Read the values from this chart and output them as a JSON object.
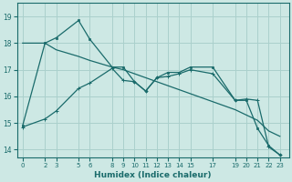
{
  "title": "",
  "xlabel": "Humidex (Indice chaleur)",
  "ylabel": "",
  "bg_color": "#cde8e4",
  "grid_color": "#aad0cc",
  "line_color": "#1a6b6b",
  "xlim": [
    -0.5,
    23.8
  ],
  "ylim": [
    13.7,
    19.5
  ],
  "yticks": [
    14,
    15,
    16,
    17,
    18,
    19
  ],
  "xticks": [
    0,
    2,
    3,
    5,
    6,
    8,
    9,
    10,
    11,
    12,
    13,
    14,
    15,
    17,
    19,
    20,
    21,
    22,
    23
  ],
  "series1_x": [
    0,
    2,
    3,
    5,
    6,
    8,
    9,
    10,
    11,
    12,
    13,
    14,
    15,
    17,
    19,
    20,
    21,
    22,
    23
  ],
  "series1_y": [
    14.9,
    18.0,
    18.2,
    18.85,
    18.15,
    17.1,
    17.1,
    16.55,
    16.2,
    16.7,
    16.9,
    16.9,
    17.1,
    17.1,
    15.85,
    15.85,
    14.8,
    14.15,
    13.8
  ],
  "series2_x": [
    0,
    2,
    3,
    5,
    6,
    8,
    9,
    10,
    11,
    12,
    13,
    14,
    15,
    17,
    19,
    20,
    21,
    22,
    23
  ],
  "series2_y": [
    18.0,
    18.0,
    17.75,
    17.5,
    17.35,
    17.1,
    17.0,
    16.85,
    16.7,
    16.55,
    16.4,
    16.25,
    16.1,
    15.8,
    15.5,
    15.3,
    15.1,
    14.7,
    14.5
  ],
  "series3_x": [
    0,
    2,
    3,
    5,
    6,
    8,
    9,
    10,
    11,
    12,
    13,
    14,
    15,
    17,
    19,
    20,
    21,
    22,
    23
  ],
  "series3_y": [
    14.85,
    15.15,
    15.45,
    16.3,
    16.5,
    17.05,
    16.6,
    16.55,
    16.2,
    16.7,
    16.75,
    16.85,
    17.0,
    16.85,
    15.85,
    15.9,
    15.85,
    14.1,
    13.8
  ]
}
